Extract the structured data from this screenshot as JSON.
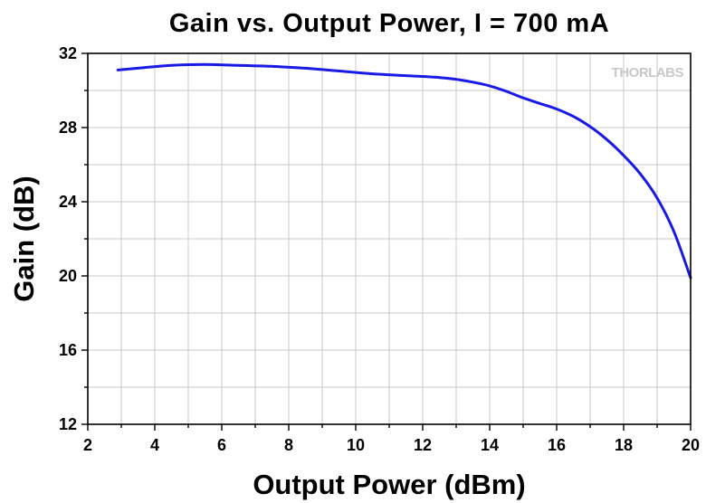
{
  "chart_data": {
    "type": "line",
    "title": "Gain vs. Output Power, I = 700 mA",
    "xlabel": "Output Power (dBm)",
    "ylabel": "Gain (dB)",
    "xlim": [
      2,
      20
    ],
    "ylim": [
      12,
      32
    ],
    "xticks": [
      2,
      4,
      6,
      8,
      10,
      12,
      14,
      16,
      18,
      20
    ],
    "yticks": [
      12,
      16,
      20,
      24,
      28,
      32
    ],
    "grid": true,
    "logo": "THORLABS",
    "series_color": "#1a1ae6",
    "series": [
      {
        "x": [
          2.9,
          3.5,
          4.5,
          5.5,
          6.5,
          7.5,
          8.5,
          9.5,
          10.5,
          11.5,
          12.5,
          13.0,
          13.5,
          14.0,
          14.5,
          15.0,
          15.5,
          16.0,
          16.5,
          17.0,
          17.5,
          18.0,
          18.5,
          19.0,
          19.5,
          20.0
        ],
        "y": [
          31.1,
          31.2,
          31.35,
          31.4,
          31.35,
          31.3,
          31.2,
          31.05,
          30.9,
          30.8,
          30.7,
          30.6,
          30.45,
          30.25,
          29.95,
          29.6,
          29.3,
          29.0,
          28.6,
          28.05,
          27.35,
          26.5,
          25.5,
          24.2,
          22.4,
          19.9
        ]
      }
    ]
  }
}
